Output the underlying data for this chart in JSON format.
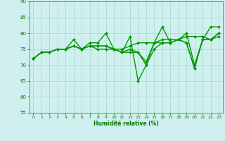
{
  "xlabel": "Humidité relative (%)",
  "ylabel": "",
  "background_color": "#d0f0f0",
  "grid_color": "#aaddcc",
  "line_color": "#009900",
  "marker": "D",
  "markersize": 2.0,
  "linewidth": 1.0,
  "xlim": [
    -0.5,
    23.5
  ],
  "ylim": [
    55,
    90
  ],
  "yticks": [
    55,
    60,
    65,
    70,
    75,
    80,
    85,
    90
  ],
  "xticks": [
    0,
    1,
    2,
    3,
    4,
    5,
    6,
    7,
    8,
    9,
    10,
    11,
    12,
    13,
    14,
    15,
    16,
    17,
    18,
    19,
    20,
    21,
    22,
    23
  ],
  "series": [
    [
      72,
      74,
      74,
      75,
      75,
      78,
      75,
      77,
      77,
      80,
      75,
      74,
      79,
      65,
      70,
      77,
      82,
      77,
      78,
      80,
      70,
      78,
      82,
      82
    ],
    [
      72,
      74,
      74,
      75,
      75,
      76,
      75,
      76,
      76,
      76,
      75,
      75,
      76,
      77,
      77,
      77,
      78,
      78,
      78,
      79,
      79,
      79,
      78,
      80
    ],
    [
      72,
      74,
      74,
      75,
      75,
      76,
      75,
      76,
      76,
      76,
      75,
      74,
      75,
      74,
      71,
      77,
      77,
      77,
      78,
      77,
      69,
      78,
      78,
      80
    ],
    [
      72,
      74,
      74,
      75,
      75,
      76,
      75,
      76,
      75,
      75,
      75,
      74,
      74,
      74,
      70,
      75,
      77,
      77,
      78,
      77,
      69,
      78,
      78,
      79
    ]
  ]
}
